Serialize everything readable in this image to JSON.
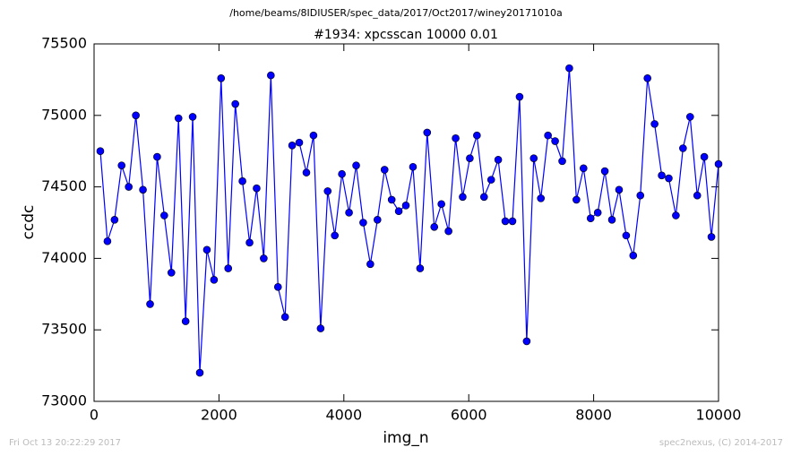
{
  "chart_data": {
    "type": "line",
    "suptitle": "/home/beams/8IDIUSER/spec_data/2017/Oct2017/winey20171010a",
    "title": "#1934: xpcsscan 10000 0.01",
    "xlabel": "img_n",
    "ylabel": "ccdc",
    "footer_left": "Fri Oct 13 20:22:29 2017",
    "footer_right": "spec2nexus, (C) 2014-2017",
    "x": [
      100,
      214,
      328,
      441,
      555,
      669,
      783,
      897,
      1010,
      1124,
      1238,
      1352,
      1466,
      1579,
      1693,
      1807,
      1921,
      2034,
      2148,
      2262,
      2376,
      2490,
      2603,
      2717,
      2831,
      2945,
      3059,
      3172,
      3286,
      3400,
      3514,
      3628,
      3741,
      3855,
      3969,
      4083,
      4197,
      4310,
      4424,
      4538,
      4652,
      4766,
      4879,
      4993,
      5107,
      5221,
      5334,
      5448,
      5562,
      5676,
      5790,
      5903,
      6017,
      6131,
      6245,
      6359,
      6472,
      6586,
      6700,
      6814,
      6928,
      7041,
      7155,
      7269,
      7383,
      7497,
      7610,
      7724,
      7838,
      7952,
      8066,
      8179,
      8293,
      8407,
      8521,
      8634,
      8748,
      8862,
      8976,
      9090,
      9203,
      9317,
      9431,
      9545,
      9659,
      9772,
      9886,
      10000
    ],
    "series": [
      {
        "color": "#0000ff",
        "values": [
          74750,
          74120,
          74270,
          74650,
          74500,
          75000,
          74480,
          73680,
          74710,
          74300,
          73900,
          74980,
          73560,
          74990,
          73200,
          74060,
          73850,
          75260,
          73930,
          75080,
          74540,
          74110,
          74490,
          74000,
          75280,
          73800,
          73590,
          74790,
          74810,
          74600,
          74860,
          73510,
          74470,
          74160,
          74590,
          74320,
          74650,
          74250,
          73960,
          74270,
          74620,
          74410,
          74330,
          74370,
          74640,
          73930,
          74880,
          74220,
          74380,
          74190,
          74840,
          74430,
          74700,
          74860,
          74430,
          74550,
          74690,
          74260,
          74260,
          75130,
          73420,
          74700,
          74420,
          74860,
          74820,
          74680,
          75330,
          74410,
          74630,
          74280,
          74320,
          74610,
          74270,
          74480,
          74160,
          74020,
          74440,
          75260,
          74940,
          74580,
          74560,
          74300,
          74770,
          74990,
          74440,
          74710,
          74150,
          74660
        ]
      }
    ],
    "xlim": [
      0,
      10000
    ],
    "ylim": [
      73000,
      75500
    ],
    "xticks": [
      0,
      2000,
      4000,
      6000,
      8000,
      10000
    ],
    "yticks": [
      73000,
      73500,
      74000,
      74500,
      75000,
      75500
    ],
    "grid": false
  }
}
